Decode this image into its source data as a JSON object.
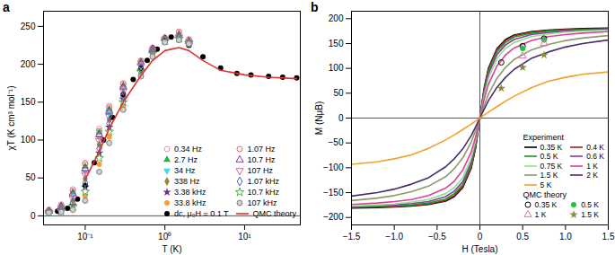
{
  "chart_data": [
    {
      "type": "scatter",
      "title": "a",
      "x_label": "T (K)",
      "y_label": "χT (K cm³ mol⁻¹)",
      "log": "x",
      "legend": "bottom-right",
      "xlim": [
        0.03,
        50
      ],
      "xticks": [
        {
          "value": 0.1,
          "label": "10⁻¹"
        },
        {
          "value": 1,
          "label": "10⁰"
        },
        {
          "value": 10,
          "label": "10¹"
        }
      ],
      "ylim": [
        -12,
        270
      ],
      "yticks": [
        0,
        50,
        100,
        150,
        200,
        250
      ],
      "series": [
        {
          "name": "0.34 Hz",
          "color": "#f08cb0",
          "marker": "circle-open",
          "x": [
            0.035,
            0.05,
            0.07,
            0.1,
            0.15,
            0.2,
            0.3,
            0.5,
            0.7,
            1,
            1.5,
            2
          ],
          "values": [
            8,
            15,
            35,
            70,
            115,
            145,
            175,
            205,
            222,
            235,
            242,
            232
          ]
        },
        {
          "name": "2.7 Hz",
          "color": "#22b14c",
          "marker": "triangle",
          "x": [
            0.035,
            0.05,
            0.07,
            0.1,
            0.15,
            0.2,
            0.3,
            0.5,
            0.7,
            1,
            1.5,
            2
          ],
          "values": [
            7,
            13,
            31,
            65,
            110,
            141,
            172,
            203,
            221,
            234,
            240,
            231
          ]
        },
        {
          "name": "34 Hz",
          "color": "#3fd8ec",
          "marker": "triangle-down",
          "x": [
            0.035,
            0.05,
            0.07,
            0.1,
            0.15,
            0.2,
            0.3,
            0.5,
            0.7,
            1,
            1.5,
            2
          ],
          "values": [
            6,
            11,
            26,
            58,
            103,
            135,
            168,
            200,
            219,
            233,
            236,
            229
          ]
        },
        {
          "name": "338 Hz",
          "color": "#8b8b3a",
          "marker": "diamond",
          "x": [
            0.035,
            0.05,
            0.07,
            0.1,
            0.15,
            0.2,
            0.3,
            0.5,
            0.7,
            1,
            1.5,
            2
          ],
          "values": [
            5,
            9,
            20,
            49,
            94,
            127,
            162,
            196,
            217,
            232,
            235,
            228
          ]
        },
        {
          "name": "3.38 kHz",
          "color": "#6a2c91",
          "marker": "star",
          "x": [
            0.035,
            0.05,
            0.07,
            0.1,
            0.15,
            0.2,
            0.3,
            0.5,
            0.7,
            1,
            1.5,
            2
          ],
          "values": [
            5,
            7,
            14,
            38,
            83,
            117,
            154,
            192,
            215,
            231,
            234,
            228
          ]
        },
        {
          "name": "33.8 kHz",
          "color": "#f5a030",
          "marker": "hexagon",
          "x": [
            0.035,
            0.05,
            0.07,
            0.1,
            0.15,
            0.2,
            0.3,
            0.5,
            0.7,
            1,
            1.5,
            2
          ],
          "values": [
            4,
            6,
            10,
            26,
            68,
            104,
            145,
            187,
            212,
            230,
            233,
            227
          ]
        },
        {
          "name": "dc, μ₀H = 0.1 T",
          "color": "#000000",
          "marker": "circle",
          "x": [
            0.035,
            0.045,
            0.06,
            0.08,
            0.1,
            0.13,
            0.17,
            0.22,
            0.3,
            0.4,
            0.5,
            0.6,
            0.8,
            1,
            1.2,
            1.5,
            2,
            3,
            5,
            8,
            12,
            20,
            30,
            45
          ],
          "values": [
            5,
            6,
            10,
            22,
            40,
            70,
            100,
            130,
            160,
            180,
            195,
            205,
            220,
            232,
            236,
            232,
            225,
            210,
            195,
            188,
            186,
            184,
            183,
            182
          ]
        },
        {
          "name": "1.07 Hz",
          "color": "#e8706a",
          "marker": "circle-open",
          "x": [
            0.035,
            0.05,
            0.07,
            0.1,
            0.15,
            0.2,
            0.3,
            0.5,
            0.7,
            1,
            1.5,
            2
          ],
          "values": [
            7,
            14,
            33,
            68,
            112,
            143,
            174,
            204,
            221,
            235,
            243,
            233
          ]
        },
        {
          "name": "10.7 Hz",
          "color": "#7b3fa0",
          "marker": "triangle-open",
          "x": [
            0.035,
            0.05,
            0.07,
            0.1,
            0.15,
            0.2,
            0.3,
            0.5,
            0.7,
            1,
            1.5,
            2
          ],
          "values": [
            6,
            12,
            29,
            62,
            107,
            138,
            170,
            202,
            220,
            234,
            238,
            230
          ]
        },
        {
          "name": "107 Hz",
          "color": "#e060a0",
          "marker": "triangle-down-open",
          "x": [
            0.035,
            0.05,
            0.07,
            0.1,
            0.15,
            0.2,
            0.3,
            0.5,
            0.7,
            1,
            1.5,
            2
          ],
          "values": [
            5,
            10,
            23,
            54,
            99,
            131,
            165,
            198,
            218,
            233,
            236,
            229
          ]
        },
        {
          "name": "1.07 kHz",
          "color": "#5060c0",
          "marker": "diamond-open",
          "x": [
            0.035,
            0.05,
            0.07,
            0.1,
            0.15,
            0.2,
            0.3,
            0.5,
            0.7,
            1,
            1.5,
            2
          ],
          "values": [
            5,
            8,
            17,
            44,
            89,
            122,
            158,
            194,
            216,
            232,
            235,
            228
          ]
        },
        {
          "name": "10.7 kHz",
          "color": "#50b050",
          "marker": "star-open",
          "x": [
            0.035,
            0.05,
            0.07,
            0.1,
            0.15,
            0.2,
            0.3,
            0.5,
            0.7,
            1,
            1.5,
            2
          ],
          "values": [
            4,
            6,
            12,
            32,
            76,
            111,
            150,
            190,
            214,
            231,
            234,
            228
          ]
        },
        {
          "name": "107 kHz",
          "color": "#808080",
          "marker": "circle-half",
          "x": [
            0.035,
            0.05,
            0.07,
            0.1,
            0.15,
            0.2,
            0.3,
            0.5,
            0.7,
            1,
            1.5,
            2
          ],
          "values": [
            4,
            5,
            8,
            20,
            58,
            96,
            140,
            184,
            210,
            229,
            232,
            227
          ]
        },
        {
          "name": "QMC theory",
          "color": "#e03030",
          "type": "line",
          "line_style": "solid",
          "x": [
            0.1,
            0.15,
            0.2,
            0.3,
            0.5,
            0.7,
            1,
            1.5,
            2,
            3,
            5,
            10,
            20,
            45
          ],
          "values": [
            48,
            85,
            115,
            150,
            185,
            205,
            218,
            222,
            218,
            205,
            192,
            186,
            183,
            181
          ]
        }
      ]
    },
    {
      "type": "line",
      "title": "b",
      "x_label": "H (Tesla)",
      "y_label": "M (NμB)",
      "legend": "bottom-right",
      "xlim": [
        -1.5,
        1.5
      ],
      "xticks": [
        {
          "value": -1.5,
          "label": "−1.5"
        },
        {
          "value": -1,
          "label": "−1.0"
        },
        {
          "value": -0.5,
          "label": "−0.5"
        },
        0,
        0.5,
        {
          "value": 1,
          "label": "1.0"
        },
        1.5
      ],
      "ylim": [
        -215,
        215
      ],
      "yticks": [
        {
          "value": -200,
          "label": "−200"
        },
        {
          "value": -150,
          "label": "−150"
        },
        {
          "value": -100,
          "label": "−100"
        },
        {
          "value": -50,
          "label": "−50"
        },
        0,
        50,
        100,
        150,
        200
      ],
      "series": [
        {
          "name": "0.35 K",
          "group": "Experiment",
          "color": "#000000",
          "line_style": "solid",
          "x": [
            -1.5,
            -1.2,
            -1,
            -0.8,
            -0.6,
            -0.4,
            -0.3,
            -0.2,
            -0.1,
            -0.05,
            0,
            0.05,
            0.1,
            0.2,
            0.3,
            0.4,
            0.6,
            0.8,
            1,
            1.2,
            1.5
          ],
          "values": [
            -181,
            -180,
            -179,
            -177,
            -174,
            -167,
            -158,
            -140,
            -100,
            -60,
            0,
            60,
            100,
            140,
            158,
            167,
            174,
            177,
            179,
            180,
            181
          ]
        },
        {
          "name": "0.4 K",
          "group": "Experiment",
          "color": "#a02020",
          "line_style": "solid",
          "x": [
            -1.5,
            -1.2,
            -1,
            -0.8,
            -0.6,
            -0.4,
            -0.3,
            -0.2,
            -0.1,
            -0.05,
            0,
            0.05,
            0.1,
            0.2,
            0.3,
            0.4,
            0.6,
            0.8,
            1,
            1.2,
            1.5
          ],
          "values": [
            -180,
            -179,
            -178,
            -176,
            -173,
            -166,
            -156,
            -138,
            -98,
            -58,
            0,
            58,
            98,
            138,
            156,
            166,
            173,
            176,
            178,
            179,
            180
          ]
        },
        {
          "name": "0.5 K",
          "group": "Experiment",
          "color": "#1a9a2a",
          "line_style": "solid",
          "x": [
            -1.5,
            -1.2,
            -1,
            -0.8,
            -0.6,
            -0.4,
            -0.3,
            -0.2,
            -0.1,
            -0.05,
            0,
            0.05,
            0.1,
            0.2,
            0.3,
            0.4,
            0.6,
            0.8,
            1,
            1.2,
            1.5
          ],
          "values": [
            -179,
            -178,
            -177,
            -175,
            -171,
            -163,
            -152,
            -134,
            -94,
            -55,
            0,
            55,
            94,
            134,
            152,
            163,
            171,
            175,
            177,
            178,
            179
          ]
        },
        {
          "name": "0.6 K",
          "group": "Experiment",
          "color": "#8e3a9e",
          "line_style": "solid",
          "x": [
            -1.5,
            -1.2,
            -1,
            -0.8,
            -0.6,
            -0.4,
            -0.3,
            -0.2,
            -0.1,
            -0.05,
            0,
            0.05,
            0.1,
            0.2,
            0.3,
            0.4,
            0.6,
            0.8,
            1,
            1.2,
            1.5
          ],
          "values": [
            -178,
            -177,
            -175,
            -172,
            -168,
            -158,
            -147,
            -128,
            -88,
            -50,
            0,
            50,
            88,
            128,
            147,
            158,
            168,
            172,
            175,
            177,
            178
          ]
        },
        {
          "name": "0.75 K",
          "group": "Experiment",
          "color": "#8ee08e",
          "line_style": "solid",
          "x": [
            -1.5,
            -1.2,
            -1,
            -0.8,
            -0.6,
            -0.4,
            -0.3,
            -0.2,
            -0.1,
            -0.05,
            0,
            0.05,
            0.1,
            0.2,
            0.3,
            0.4,
            0.6,
            0.8,
            1,
            1.2,
            1.5
          ],
          "values": [
            -177,
            -175,
            -173,
            -169,
            -164,
            -152,
            -140,
            -120,
            -80,
            -45,
            0,
            45,
            80,
            120,
            140,
            152,
            164,
            169,
            173,
            175,
            177
          ]
        },
        {
          "name": "1 K",
          "group": "Experiment",
          "color": "#e0409a",
          "line_style": "solid",
          "x": [
            -1.5,
            -1.2,
            -1,
            -0.8,
            -0.6,
            -0.4,
            -0.3,
            -0.2,
            -0.1,
            -0.05,
            0,
            0.05,
            0.1,
            0.2,
            0.3,
            0.4,
            0.6,
            0.8,
            1,
            1.2,
            1.5
          ],
          "values": [
            -174,
            -171,
            -168,
            -164,
            -156,
            -141,
            -127,
            -105,
            -68,
            -38,
            0,
            38,
            68,
            105,
            127,
            141,
            156,
            164,
            168,
            171,
            174
          ]
        },
        {
          "name": "1.5 K",
          "group": "Experiment",
          "color": "#8a9a6a",
          "line_style": "solid",
          "x": [
            -1.5,
            -1.2,
            -1,
            -0.8,
            -0.6,
            -0.4,
            -0.3,
            -0.2,
            -0.1,
            -0.05,
            0,
            0.05,
            0.1,
            0.2,
            0.3,
            0.4,
            0.6,
            0.8,
            1,
            1.2,
            1.5
          ],
          "values": [
            -166,
            -161,
            -156,
            -148,
            -137,
            -118,
            -102,
            -80,
            -48,
            -25,
            0,
            25,
            48,
            80,
            102,
            118,
            137,
            148,
            156,
            161,
            166
          ]
        },
        {
          "name": "2 K",
          "group": "Experiment",
          "color": "#4a2a70",
          "line_style": "solid",
          "x": [
            -1.5,
            -1.2,
            -1,
            -0.8,
            -0.6,
            -0.4,
            -0.3,
            -0.2,
            -0.1,
            -0.05,
            0,
            0.05,
            0.1,
            0.2,
            0.3,
            0.4,
            0.6,
            0.8,
            1,
            1.2,
            1.5
          ],
          "values": [
            -157,
            -150,
            -143,
            -133,
            -120,
            -98,
            -82,
            -62,
            -35,
            -18,
            0,
            18,
            35,
            62,
            82,
            98,
            120,
            133,
            143,
            150,
            157
          ]
        },
        {
          "name": "5 K",
          "group": "Experiment",
          "color": "#f0a030",
          "line_style": "solid",
          "x": [
            -1.5,
            -1.2,
            -1,
            -0.8,
            -0.6,
            -0.4,
            -0.3,
            -0.2,
            -0.1,
            -0.05,
            0,
            0.05,
            0.1,
            0.2,
            0.3,
            0.4,
            0.6,
            0.8,
            1,
            1.2,
            1.5
          ],
          "values": [
            -93,
            -88,
            -82,
            -74,
            -61,
            -44,
            -34,
            -23,
            -12,
            -6,
            0,
            6,
            12,
            23,
            34,
            44,
            61,
            74,
            82,
            88,
            93
          ]
        },
        {
          "name": "0.35 K",
          "group": "QMC theory",
          "type": "scatter",
          "color": "#000000",
          "marker": "circle-open",
          "x": [
            0.25,
            0.5,
            0.75
          ],
          "values": [
            112,
            145,
            160
          ]
        },
        {
          "name": "0.5 K",
          "group": "QMC theory",
          "type": "scatter",
          "color": "#22c040",
          "marker": "circle",
          "x": [
            0.5,
            0.75
          ],
          "values": [
            140,
            157
          ]
        },
        {
          "name": "1 K",
          "group": "QMC theory",
          "type": "scatter",
          "color": "#e070b0",
          "marker": "triangle-open",
          "x": [
            0.5,
            0.75
          ],
          "values": [
            125,
            150
          ]
        },
        {
          "name": "1.5 K",
          "group": "QMC theory",
          "type": "scatter",
          "color": "#8a8a3a",
          "marker": "star",
          "x": [
            0.25,
            0.5,
            0.75
          ],
          "values": [
            60,
            102,
            127
          ]
        }
      ]
    }
  ]
}
